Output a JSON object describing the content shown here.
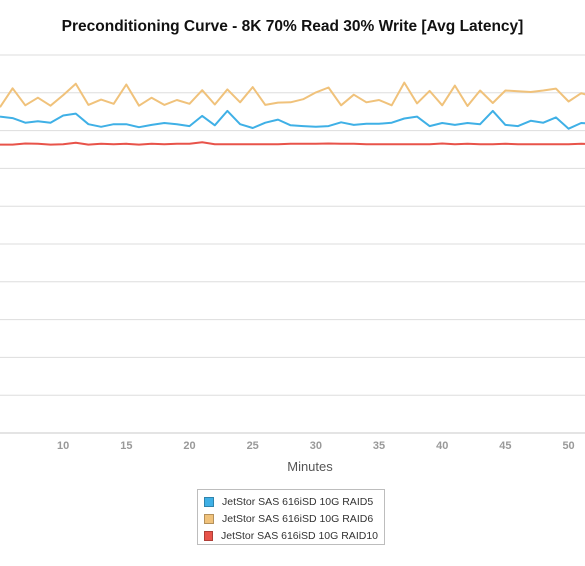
{
  "chart_data": {
    "type": "line",
    "title": "Preconditioning Curve - 8K 70% Read 30% Write [Avg Latency]",
    "xlabel": "Minutes",
    "ylabel": "",
    "x_ticks": [
      10,
      15,
      20,
      25,
      30,
      35,
      40,
      45,
      50
    ],
    "xlim": [
      5,
      51.3
    ],
    "ylim": [
      0,
      100
    ],
    "grid": true,
    "legend_position": "bottom",
    "x": [
      5,
      6,
      7,
      8,
      9,
      10,
      11,
      12,
      13,
      14,
      15,
      16,
      17,
      18,
      19,
      20,
      21,
      22,
      23,
      24,
      25,
      26,
      27,
      28,
      29,
      30,
      31,
      32,
      33,
      34,
      35,
      36,
      37,
      38,
      39,
      40,
      41,
      42,
      43,
      44,
      45,
      46,
      47,
      48,
      49,
      50,
      51,
      52
    ],
    "series": [
      {
        "name": "JetStor SAS 616iSD 10G RAID5",
        "color": "#3fb0e6",
        "values": [
          83.7,
          83.3,
          82.1,
          82.5,
          82.1,
          84.0,
          84.5,
          81.7,
          81.0,
          81.7,
          81.7,
          80.9,
          81.5,
          82.0,
          81.7,
          81.2,
          83.9,
          81.4,
          85.2,
          81.7,
          80.7,
          82.1,
          82.9,
          81.4,
          81.2,
          81.0,
          81.2,
          82.2,
          81.5,
          81.8,
          81.8,
          82.1,
          83.2,
          83.7,
          81.2,
          82.0,
          81.5,
          82.0,
          81.7,
          85.2,
          81.5,
          81.2,
          82.6,
          82.1,
          83.5,
          80.5,
          82.0,
          81.8
        ]
      },
      {
        "name": "JetStor SAS 616iSD 10G RAID6",
        "color": "#f0c27b",
        "values": [
          86.2,
          91.2,
          86.7,
          88.7,
          86.6,
          89.4,
          92.4,
          86.8,
          88.2,
          87.1,
          92.2,
          86.6,
          88.7,
          86.8,
          88.1,
          87.1,
          90.7,
          86.9,
          90.9,
          87.5,
          91.5,
          86.8,
          87.4,
          87.5,
          88.3,
          90.1,
          91.4,
          86.7,
          89.5,
          87.5,
          88.1,
          86.7,
          92.7,
          87.2,
          90.5,
          86.7,
          91.9,
          86.5,
          90.6,
          87.3,
          90.6,
          90.4,
          90.2,
          90.6,
          91.1,
          87.7,
          89.9,
          88.9
        ]
      },
      {
        "name": "JetStor SAS 616iSD 10G RAID10",
        "color": "#e8534a",
        "values": [
          76.3,
          76.3,
          76.6,
          76.5,
          76.3,
          76.4,
          76.8,
          76.3,
          76.5,
          76.4,
          76.5,
          76.3,
          76.5,
          76.4,
          76.5,
          76.5,
          76.9,
          76.4,
          76.4,
          76.4,
          76.4,
          76.4,
          76.4,
          76.5,
          76.5,
          76.5,
          76.6,
          76.5,
          76.5,
          76.4,
          76.4,
          76.4,
          76.4,
          76.4,
          76.4,
          76.6,
          76.4,
          76.5,
          76.4,
          76.4,
          76.5,
          76.4,
          76.4,
          76.4,
          76.4,
          76.4,
          76.5,
          76.4
        ]
      }
    ]
  }
}
